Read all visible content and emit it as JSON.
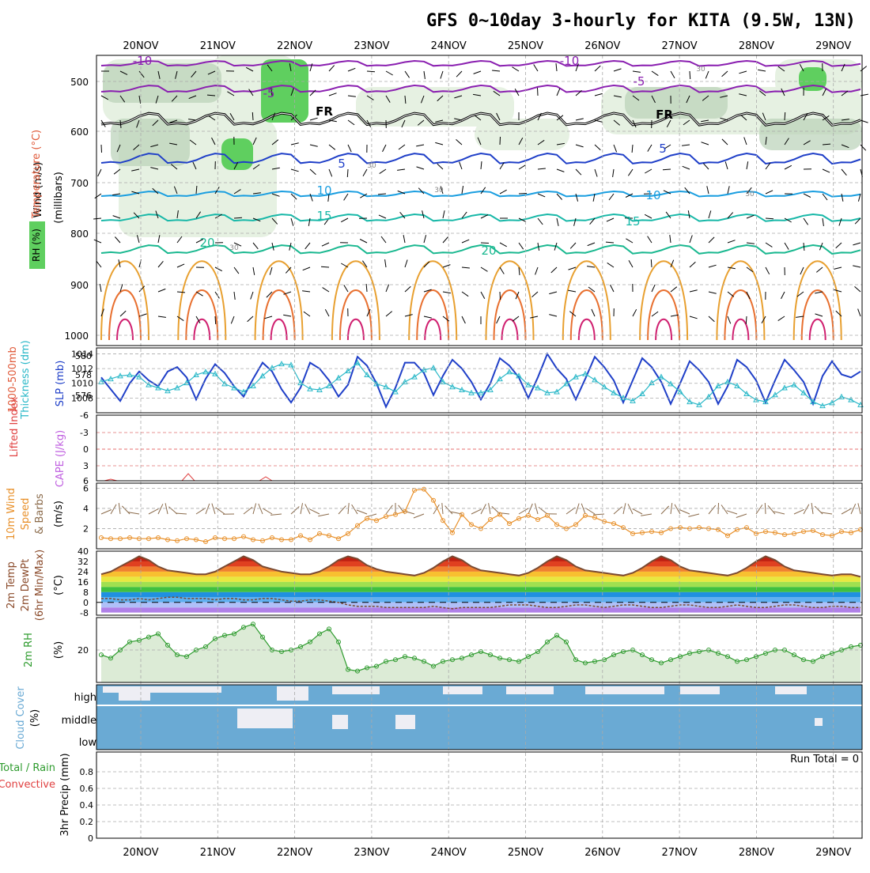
{
  "title": "GFS 0~10day 3-hourly for KITA (9.5W, 13N)",
  "dates": [
    "20NOV",
    "21NOV",
    "22NOV",
    "23NOV",
    "24NOV",
    "25NOV",
    "26NOV",
    "27NOV",
    "28NOV",
    "29NOV"
  ],
  "colors": {
    "grid": "#aaaaaa",
    "slp": "#1f3fc8",
    "thick": "#2ab8c8",
    "wind10": "#e8902a",
    "barb": "#8a6a4a",
    "rh": "#2e9b2e",
    "rhfill": "#dcebd6",
    "cloud": "#6aaad4",
    "temp_line": "#7a4a32",
    "dew_line": "#7a4a32"
  },
  "panels": {
    "upper": {
      "ylabel_words": [
        "Wind (m/s)",
        "Temperature (°C)",
        "RH (%)"
      ],
      "ylabel_unit": "(millibars)",
      "yticks": [
        "500",
        "600",
        "700",
        "800",
        "900",
        "1000"
      ],
      "contour_labels": [
        "-10",
        "-10",
        "-5",
        "-5",
        "FR",
        "FR",
        "5",
        "5",
        "10",
        "10",
        "15",
        "15",
        "20",
        "20",
        "30",
        "30",
        "30",
        "30",
        "30"
      ]
    },
    "thick": {
      "ylabel_a": "1000-500mb",
      "ylabel_b": "Thickness (dm)",
      "ylabel_c": "SLP (mb)",
      "yticks_left": [
        "580",
        "578",
        "576"
      ],
      "yticks_right": [
        "1014",
        "1012",
        "1010",
        "1008"
      ]
    },
    "cape": {
      "ylabel_a": "Lifted Index",
      "ylabel_b": "CAPE (J/kg)",
      "yticks": [
        "-6",
        "-3",
        "0",
        "3",
        "6"
      ]
    },
    "wind": {
      "ylabel_a": "10m Wind",
      "ylabel_b": "Speed",
      "ylabel_c": "& Barbs",
      "ylabel_d": "(m/s)",
      "yticks": [
        "6",
        "4",
        "2"
      ]
    },
    "temp": {
      "ylabel_a": "2m Temp",
      "ylabel_b": "2m DewPt",
      "ylabel_c": "(6hr Min/Max)",
      "ylabel_d": "(°C)",
      "yticks": [
        "40",
        "32",
        "24",
        "16",
        "8",
        "0",
        "-8"
      ]
    },
    "rh": {
      "ylabel_a": "2m RH",
      "ylabel_b": "(%)",
      "yticks": [
        "20"
      ]
    },
    "cloud": {
      "ylabel_a": "Cloud Cover",
      "ylabel_b": "(%)",
      "levels": [
        "high",
        "middle",
        "low"
      ]
    },
    "precip": {
      "ylabel_a": "Total / Rain",
      "ylabel_b": "Convective",
      "ylabel_c": "3hr Precip (mm)",
      "yticks": [
        "0.8",
        "0.6",
        "0.4",
        "0.2",
        "0"
      ],
      "run_total": "Run Total = 0"
    }
  },
  "chart_data": [
    {
      "type": "line",
      "title": "1000-500mb Thickness (dm) / SLP (mb)",
      "series": [
        {
          "name": "SLP (mb)",
          "values": [
            1010.8,
            1009.2,
            1007.6,
            1010.0,
            1011.6,
            1010.4,
            1009.6,
            1011.6,
            1012.2,
            1010.8,
            1007.8,
            1010.6,
            1012.6,
            1011.4,
            1009.6,
            1008.2,
            1010.6,
            1012.8,
            1011.6,
            1009.2,
            1007.4,
            1009.4,
            1012.8,
            1012.0,
            1010.4,
            1008.2,
            1009.8,
            1013.6,
            1012.4,
            1010.0,
            1006.8,
            1009.4,
            1012.8,
            1012.8,
            1011.4,
            1008.4,
            1011.0,
            1013.2,
            1012.0,
            1010.2,
            1007.8,
            1010.0,
            1013.4,
            1012.4,
            1010.8,
            1008.0,
            1010.8,
            1014.0,
            1012.0,
            1010.6,
            1007.8,
            1010.6,
            1013.6,
            1012.2,
            1010.4,
            1007.4,
            1010.4,
            1013.4,
            1012.2,
            1010.2,
            1007.2,
            1010.0,
            1013.0,
            1011.8,
            1010.2,
            1007.2,
            1009.6,
            1013.2,
            1012.2,
            1010.4,
            1007.4,
            1010.4,
            1013.2,
            1011.8,
            1010.2,
            1007.2,
            1011.0,
            1013.0,
            1011.2,
            1010.8,
            1011.6
          ]
        },
        {
          "name": "1000-500mb Thickness (dm)",
          "values": [
            577.6,
            577.9,
            578.2,
            578.3,
            578.1,
            577.3,
            577.0,
            576.7,
            577.0,
            577.5,
            578.3,
            578.6,
            578.4,
            577.4,
            577.0,
            576.6,
            577.2,
            578.2,
            579.0,
            579.4,
            579.3,
            577.5,
            576.9,
            576.8,
            577.2,
            578.0,
            578.7,
            579.5,
            578.3,
            577.4,
            577.1,
            576.6,
            577.6,
            578.1,
            578.8,
            579.0,
            577.6,
            577.1,
            576.8,
            576.5,
            576.5,
            576.8,
            577.9,
            578.6,
            578.2,
            577.3,
            577.0,
            576.5,
            576.6,
            577.4,
            578.1,
            578.4,
            577.8,
            577.1,
            576.5,
            576.0,
            575.7,
            576.4,
            577.5,
            578.1,
            577.4,
            576.6,
            575.6,
            575.3,
            576.1,
            577.2,
            577.6,
            577.2,
            576.4,
            575.8,
            575.6,
            576.3,
            577.0,
            577.3,
            576.5,
            575.6,
            575.2,
            575.5,
            576.1,
            575.8,
            575.3
          ]
        }
      ]
    },
    {
      "type": "line",
      "title": "10m Wind Speed (m/s)",
      "ylim": [
        0,
        6.5
      ],
      "series": [
        {
          "name": "Speed",
          "values": [
            1.1,
            1.0,
            1.0,
            1.1,
            1.0,
            1.0,
            1.1,
            0.9,
            0.8,
            1.0,
            0.9,
            0.7,
            1.1,
            1.0,
            1.0,
            1.2,
            0.9,
            0.8,
            1.1,
            0.9,
            0.9,
            1.3,
            0.9,
            1.5,
            1.3,
            1.0,
            1.5,
            2.3,
            3.0,
            2.8,
            3.2,
            3.4,
            3.7,
            5.8,
            5.9,
            4.8,
            2.8,
            1.6,
            3.4,
            2.4,
            2.0,
            2.9,
            3.4,
            2.5,
            3.0,
            3.3,
            2.9,
            3.3,
            2.4,
            2.0,
            2.4,
            3.3,
            3.1,
            2.7,
            2.5,
            2.1,
            1.5,
            1.6,
            1.7,
            1.6,
            2.0,
            2.1,
            2.0,
            2.1,
            2.0,
            1.9,
            1.3,
            1.9,
            2.1,
            1.5,
            1.7,
            1.6,
            1.4,
            1.5,
            1.7,
            1.8,
            1.4,
            1.3,
            1.7,
            1.6,
            1.9
          ]
        }
      ]
    },
    {
      "type": "area",
      "title": "2m Temp (°C)",
      "ylim": [
        -8,
        40
      ],
      "series": [
        {
          "name": "2m Temp",
          "values": [
            22,
            24,
            28,
            32,
            36,
            33,
            28,
            25,
            24,
            23,
            22,
            22,
            24,
            28,
            32,
            36,
            33,
            28,
            26,
            24,
            23,
            22,
            22,
            24,
            28,
            33,
            36,
            34,
            29,
            26,
            24,
            23,
            22,
            21,
            23,
            27,
            32,
            36,
            33,
            28,
            25,
            24,
            23,
            22,
            21,
            23,
            27,
            32,
            36,
            33,
            28,
            25,
            24,
            23,
            22,
            21,
            23,
            27,
            32,
            36,
            33,
            28,
            25,
            24,
            23,
            22,
            21,
            23,
            27,
            32,
            36,
            33,
            28,
            25,
            24,
            23,
            22,
            21,
            22,
            22,
            20
          ]
        },
        {
          "name": "2m DewPt",
          "values": [
            3,
            3,
            2,
            2,
            3,
            2,
            3,
            4,
            4,
            3,
            3,
            3,
            2,
            3,
            3,
            2,
            2,
            3,
            3,
            2,
            1,
            1,
            2,
            2,
            1,
            0,
            -2,
            -3,
            -3,
            -3,
            -4,
            -4,
            -4,
            -4,
            -4,
            -3,
            -4,
            -5,
            -4,
            -4,
            -4,
            -4,
            -3,
            -2,
            -2,
            -2,
            -3,
            -4,
            -4,
            -3,
            -2,
            -2,
            -3,
            -4,
            -3,
            -2,
            -2,
            -3,
            -4,
            -4,
            -3,
            -2,
            -2,
            -3,
            -4,
            -4,
            -3,
            -2,
            -3,
            -4,
            -4,
            -3,
            -2,
            -2,
            -3,
            -4,
            -4,
            -3,
            -3,
            -4,
            -4
          ]
        }
      ]
    },
    {
      "type": "area",
      "title": "2m RH (%)",
      "ylim": [
        0,
        40
      ],
      "series": [
        {
          "name": "2m RH",
          "values": [
            17,
            15,
            20,
            25,
            26,
            28,
            30,
            23,
            17,
            16,
            20,
            22,
            27,
            29,
            30,
            34,
            36,
            28,
            20,
            19,
            20,
            22,
            25,
            30,
            33,
            25,
            8,
            7,
            9,
            10,
            13,
            14,
            16,
            15,
            13,
            10,
            13,
            14,
            15,
            17,
            19,
            17,
            15,
            14,
            13,
            16,
            19,
            25,
            29,
            25,
            14,
            12,
            13,
            14,
            17,
            19,
            20,
            17,
            14,
            12,
            14,
            16,
            18,
            19,
            20,
            18,
            16,
            13,
            14,
            16,
            18,
            20,
            20,
            17,
            14,
            13,
            16,
            18,
            20,
            22,
            23
          ]
        }
      ]
    },
    {
      "type": "bar",
      "title": "Cloud Cover (%)",
      "categories": [
        "high",
        "middle",
        "low"
      ]
    },
    {
      "type": "bar",
      "title": "3hr Precip (mm)",
      "ylim": [
        0,
        1
      ],
      "values": []
    }
  ]
}
